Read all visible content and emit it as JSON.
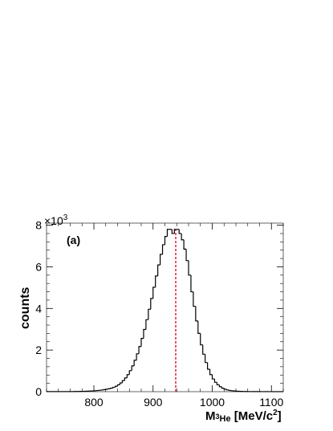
{
  "chart_data": {
    "type": "histogram",
    "panel_label": "(a)",
    "ylabel": "counts",
    "xlabel": {
      "main": "M",
      "sub_super": "3",
      "sub": "He",
      "unit_open": " [MeV/c",
      "unit_super": "2",
      "unit_close": "]"
    },
    "y_multiplier": {
      "base": "×10",
      "exponent": "3"
    },
    "xlim": [
      720,
      1120
    ],
    "ylim": [
      0,
      8.1
    ],
    "y_scale_factor": 1000,
    "x_ticks": [
      800,
      900,
      1000,
      1100
    ],
    "x_tick_labels": [
      "800",
      "900",
      "1000",
      "1100"
    ],
    "y_ticks": [
      0,
      2,
      4,
      6,
      8
    ],
    "y_tick_labels": [
      "0",
      "2",
      "4",
      "6",
      "8"
    ],
    "bin_width": 4,
    "bins_x_low": [
      720,
      724,
      728,
      732,
      736,
      740,
      744,
      748,
      752,
      756,
      760,
      764,
      768,
      772,
      776,
      780,
      784,
      788,
      792,
      796,
      800,
      804,
      808,
      812,
      816,
      820,
      824,
      828,
      832,
      836,
      840,
      844,
      848,
      852,
      856,
      860,
      864,
      868,
      872,
      876,
      880,
      884,
      888,
      892,
      896,
      900,
      904,
      908,
      912,
      916,
      920,
      924,
      928,
      932,
      936,
      940,
      944,
      948,
      952,
      956,
      960,
      964,
      968,
      972,
      976,
      980,
      984,
      988,
      992,
      996,
      1000,
      1004,
      1008,
      1012,
      1016,
      1020,
      1024,
      1028,
      1032,
      1036,
      1040,
      1044,
      1048,
      1052,
      1056,
      1060,
      1064,
      1068,
      1072,
      1076,
      1080,
      1084,
      1088,
      1092,
      1096,
      1100,
      1104,
      1108,
      1112,
      1116
    ],
    "counts": [
      0.005,
      0.005,
      0.005,
      0.005,
      0.005,
      0.005,
      0.005,
      0.005,
      0.005,
      0.005,
      0.008,
      0.008,
      0.01,
      0.012,
      0.014,
      0.017,
      0.02,
      0.025,
      0.03,
      0.037,
      0.045,
      0.055,
      0.066,
      0.08,
      0.096,
      0.115,
      0.14,
      0.17,
      0.21,
      0.26,
      0.33,
      0.42,
      0.53,
      0.66,
      0.82,
      1.01,
      1.24,
      1.51,
      1.82,
      2.17,
      2.56,
      2.99,
      3.46,
      3.96,
      4.48,
      5.02,
      5.56,
      6.09,
      6.6,
      7.06,
      7.46,
      7.8,
      7.8,
      7.6,
      7.8,
      7.8,
      7.6,
      7.3,
      6.85,
      6.3,
      5.6,
      4.8,
      4.1,
      3.4,
      2.8,
      2.25,
      1.8,
      1.4,
      1.08,
      0.82,
      0.61,
      0.45,
      0.33,
      0.24,
      0.17,
      0.12,
      0.085,
      0.06,
      0.045,
      0.033,
      0.025,
      0.019,
      0.015,
      0.012,
      0.01,
      0.008,
      0.007,
      0.006,
      0.005,
      0.004,
      0.004,
      0.003,
      0.003,
      0.003,
      0.002,
      0.002,
      0.002,
      0.002,
      0.002,
      0.002
    ],
    "reference_line": {
      "x": 938.3,
      "color": "#d9001b",
      "style": "dashed"
    },
    "histogram_color": "#000000",
    "grid": false,
    "legend": "none"
  }
}
